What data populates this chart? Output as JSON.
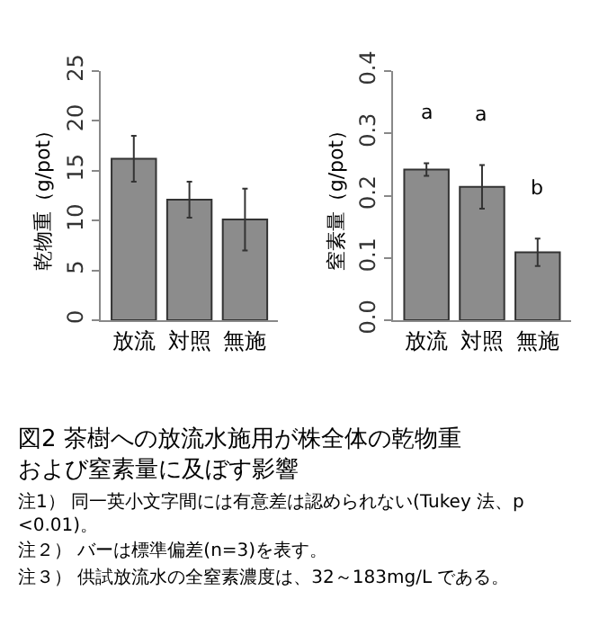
{
  "chart_data": [
    {
      "type": "bar",
      "ylabel": "乾物重（g/pot）",
      "categories": [
        "放流",
        "対照",
        "無施"
      ],
      "values": [
        16.2,
        12.1,
        10.1
      ],
      "errors": [
        2.3,
        1.8,
        3.1
      ],
      "color": "#8c8c8c",
      "ylim": [
        0,
        25
      ],
      "yticks": [
        0,
        5,
        10,
        15,
        20,
        25
      ]
    },
    {
      "type": "bar",
      "ylabel": "窒素量（g/pot）",
      "categories": [
        "放流",
        "対照",
        "無施"
      ],
      "values": [
        0.242,
        0.214,
        0.109
      ],
      "errors": [
        0.01,
        0.035,
        0.022
      ],
      "color": "#8c8c8c",
      "ylim": [
        0,
        0.4
      ],
      "yticks": [
        {
          "value": 0,
          "label": "0.0"
        },
        0.1,
        0.2,
        0.3,
        0.4
      ],
      "annotations": [
        "a",
        "a",
        "b"
      ]
    },
    {
      "type": "other",
      "title": "図2 茶樹への放流水施用が株全体の乾物重および窒素量に及ぼす影響",
      "annotations": [
        "注1） 同一英小文字間には有意差は認められない(Tukey 法、p<0.01)。",
        "注２） バーは標準偏差(n=3)を表す。",
        "注３） 供試放流水の全窒素濃度は、32～183mg/L である。"
      ]
    }
  ]
}
